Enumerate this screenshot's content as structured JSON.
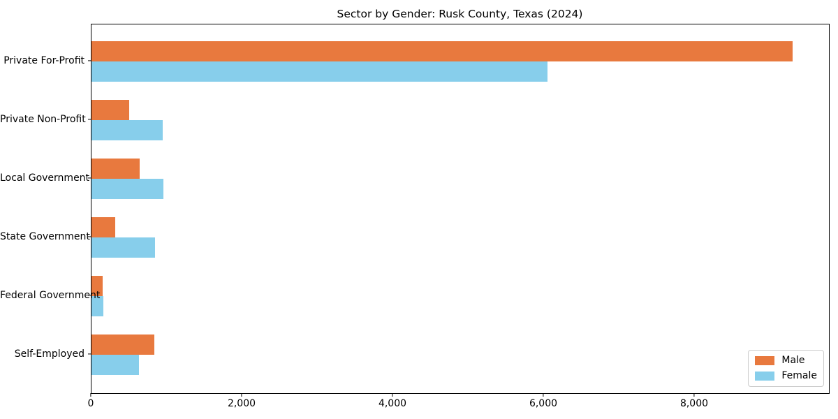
{
  "figure": {
    "background": "#ffffff"
  },
  "chart_data": {
    "type": "bar",
    "orientation": "horizontal",
    "title": "Sector by Gender: Rusk County, Texas (2024)",
    "categories": [
      "Private For-Profit",
      "Private Non-Profit",
      "Local Government",
      "State Government",
      "Federal Government",
      "Self-Employed"
    ],
    "series": [
      {
        "name": "Male",
        "color": "#e8793e",
        "values": [
          9300,
          500,
          640,
          315,
          150,
          830
        ]
      },
      {
        "name": "Female",
        "color": "#87ceeb",
        "values": [
          6050,
          940,
          950,
          845,
          160,
          630
        ]
      }
    ],
    "xlabel": "",
    "ylabel": "",
    "xlim": [
      0,
      9780
    ],
    "xticks": [
      {
        "value": 0,
        "label": "0"
      },
      {
        "value": 2000,
        "label": "2,000"
      },
      {
        "value": 4000,
        "label": "4,000"
      },
      {
        "value": 6000,
        "label": "6,000"
      },
      {
        "value": 8000,
        "label": "8,000"
      }
    ],
    "grid": false,
    "legend_position": "lower right",
    "axis_color": "#000000"
  }
}
